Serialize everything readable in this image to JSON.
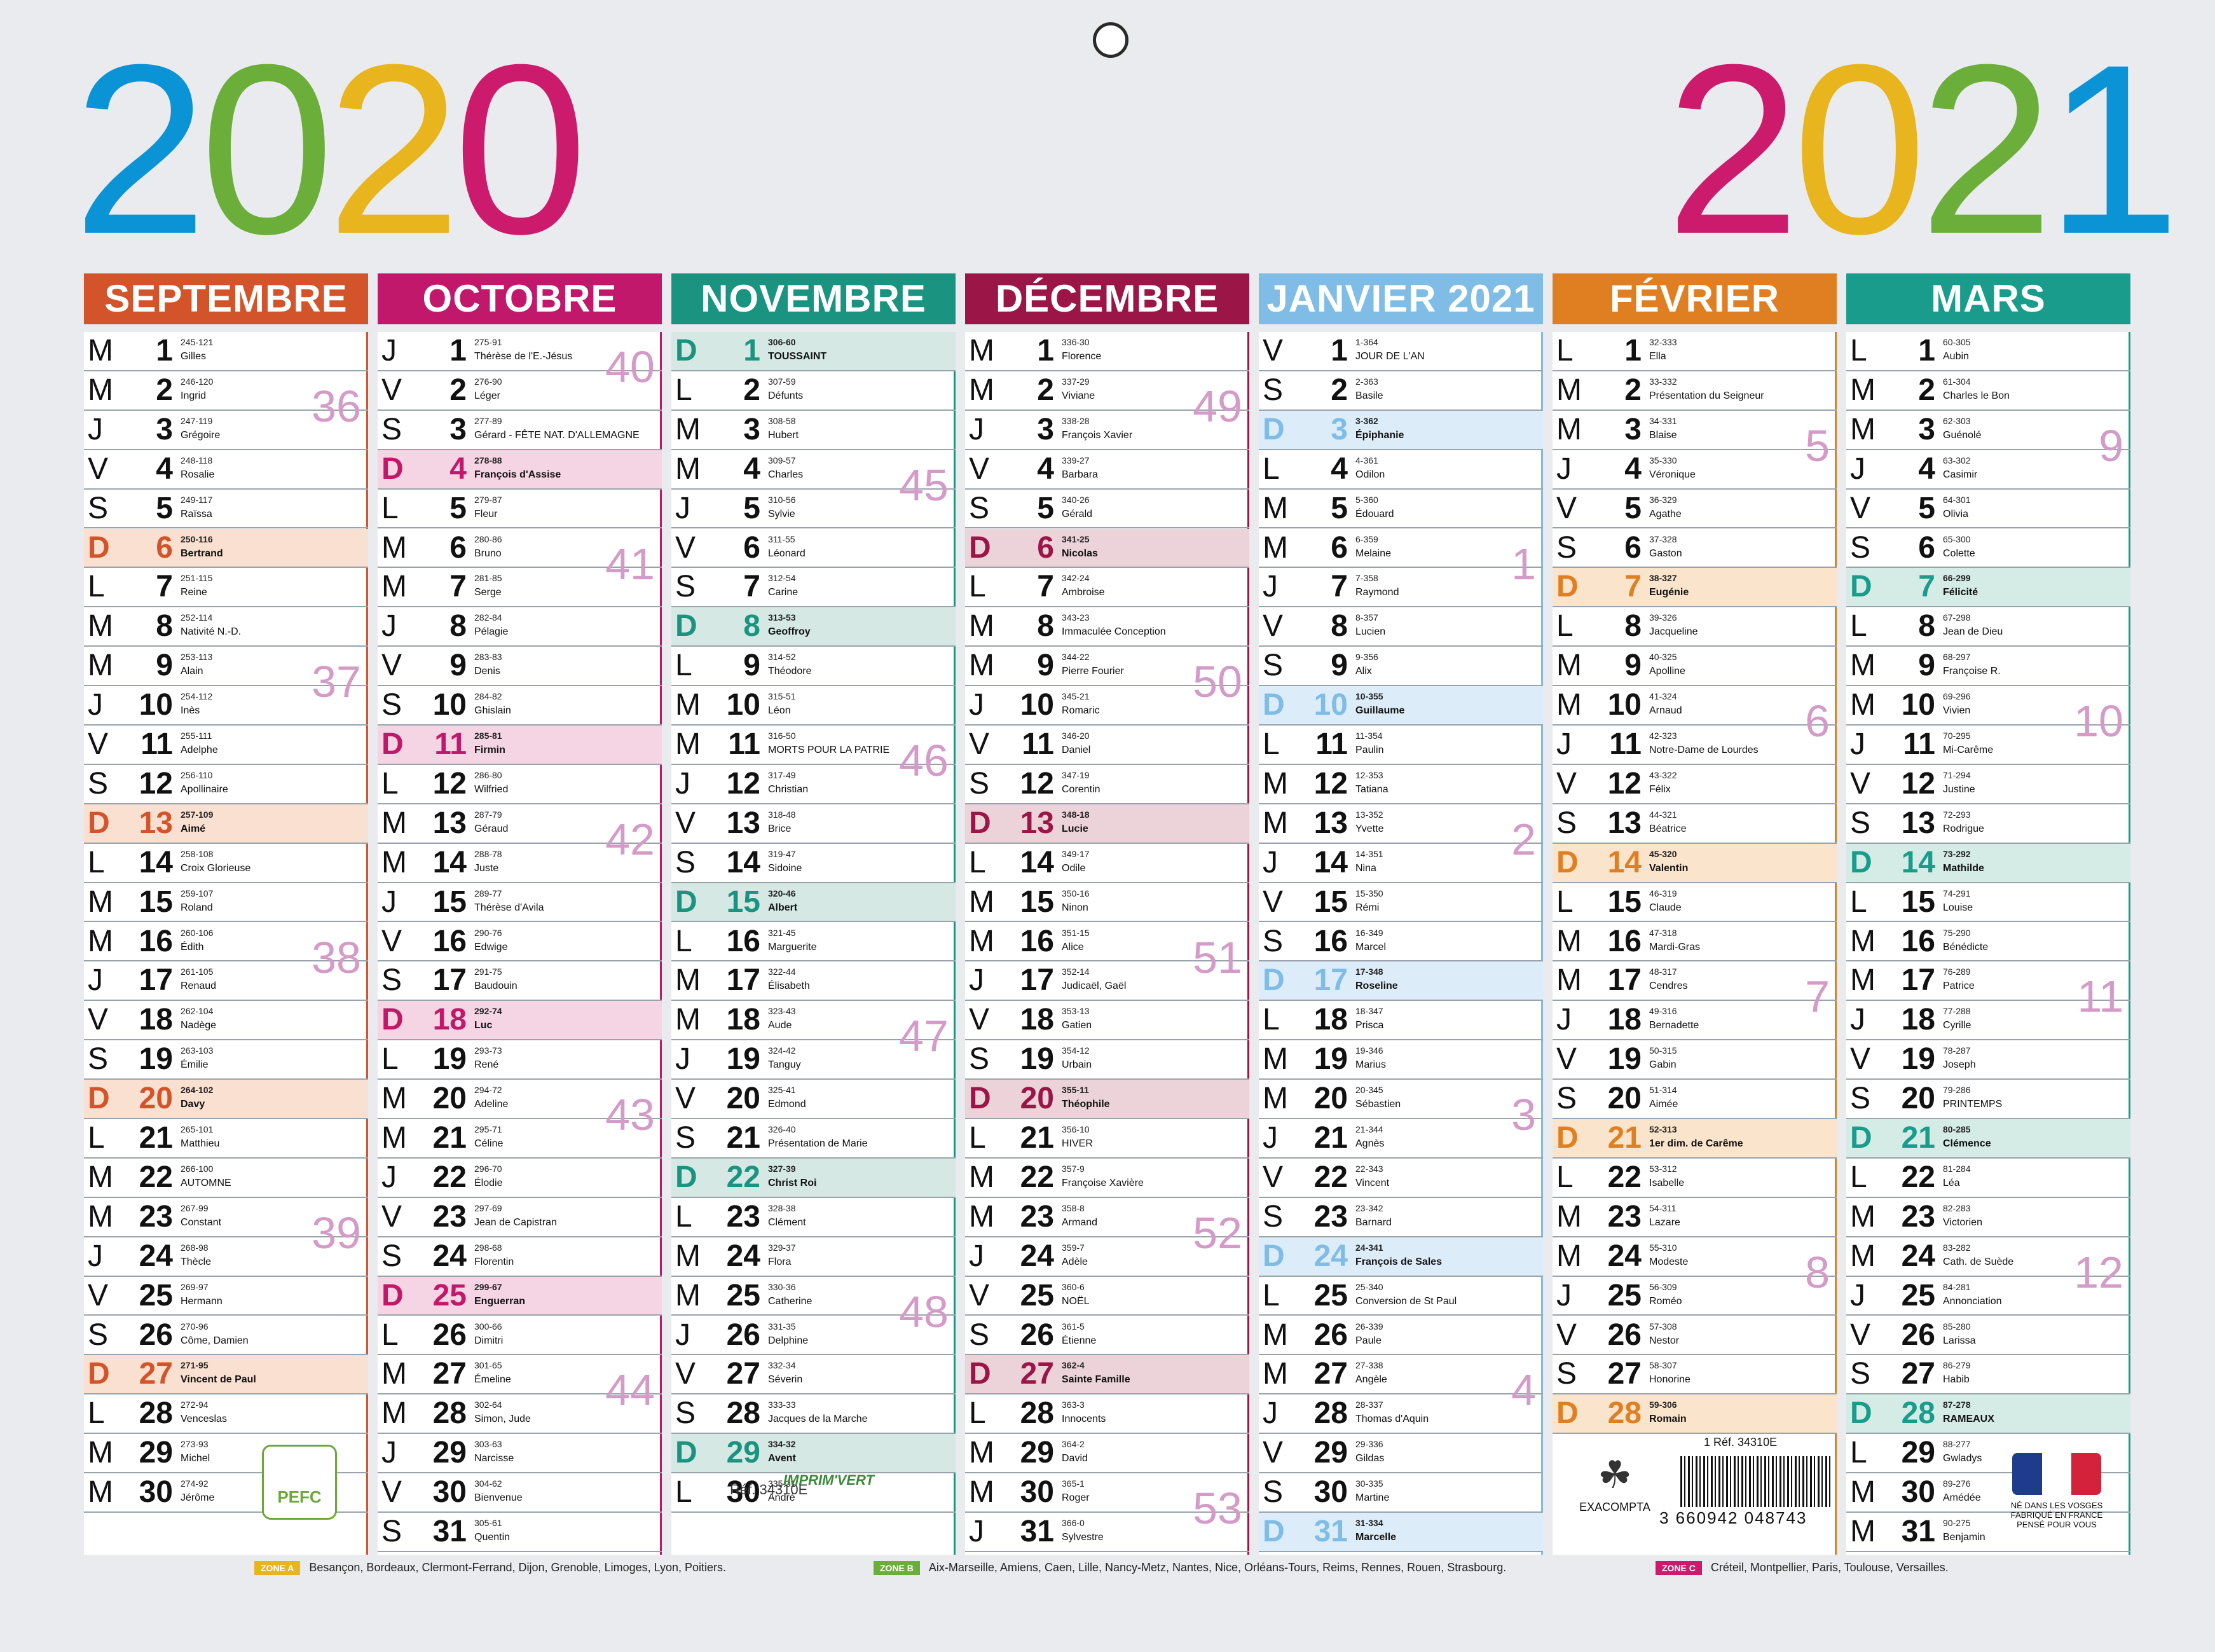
{
  "years": {
    "left": "2020",
    "right": "2021"
  },
  "colors": {
    "blue": "#0a93d5",
    "green": "#6cae3a",
    "yellow": "#e8b51e",
    "pink": "#cc1a6c"
  },
  "months": [
    {
      "name": "SEPTEMBRE 2020",
      "color": "#d3542a",
      "tint": "#fae0d0",
      "start": 1,
      "days": 30,
      "dow": 2,
      "doy": 245,
      "rem": 121,
      "saints": [
        "Gilles",
        "Ingrid",
        "Grégoire",
        "Rosalie",
        "Raïssa",
        "Bertrand",
        "Reine",
        "Nativité N.-D.",
        "Alain",
        "Inès",
        "Adelphe",
        "Apollinaire",
        "Aimé",
        "Croix Glorieuse",
        "Roland",
        "Édith",
        "Renaud",
        "Nadège",
        "Émilie",
        "Davy",
        "Matthieu",
        "AUTOMNE",
        "Constant",
        "Thècle",
        "Hermann",
        "Côme, Damien",
        "Vincent de Paul",
        "Venceslas",
        "Michel",
        "Jérôme"
      ],
      "weeks": [
        [
          "36",
          1
        ],
        [
          "37",
          8
        ],
        [
          "38",
          15
        ],
        [
          "39",
          22
        ]
      ]
    },
    {
      "name": "OCTOBRE",
      "color": "#c2186b",
      "tint": "#f5d4e4",
      "start": 1,
      "days": 31,
      "dow": 4,
      "doy": 275,
      "rem": 91,
      "saints": [
        "Thérèse de l'E.-Jésus",
        "Léger",
        "Gérard - FÊTE NAT. D'ALLEMAGNE",
        "François d'Assise",
        "Fleur",
        "Bruno",
        "Serge",
        "Pélagie",
        "Denis",
        "Ghislain",
        "Firmin",
        "Wilfried",
        "Géraud",
        "Juste",
        "Thérèse d'Avila",
        "Edwige",
        "Baudouin",
        "Luc",
        "René",
        "Adeline",
        "Céline",
        "Élodie",
        "Jean de Capistran",
        "Florentin",
        "Enguerran",
        "Dimitri",
        "Émeline",
        "Simon, Jude",
        "Narcisse",
        "Bienvenue",
        "Quentin"
      ],
      "weeks": [
        [
          "40",
          0
        ],
        [
          "41",
          5
        ],
        [
          "42",
          12
        ],
        [
          "43",
          19
        ],
        [
          "44",
          26
        ]
      ]
    },
    {
      "name": "NOVEMBRE",
      "color": "#1a9480",
      "tint": "#d5e8e4",
      "start": 1,
      "days": 30,
      "dow": 0,
      "doy": 306,
      "rem": 60,
      "saints": [
        "TOUSSAINT",
        "Défunts",
        "Hubert",
        "Charles",
        "Sylvie",
        "Léonard",
        "Carine",
        "Geoffroy",
        "Théodore",
        "Léon",
        "MORTS POUR LA PATRIE",
        "Christian",
        "Brice",
        "Sidoine",
        "Albert",
        "Marguerite",
        "Élisabeth",
        "Aude",
        "Tanguy",
        "Edmond",
        "Présentation de Marie",
        "Christ Roi",
        "Clément",
        "Flora",
        "Catherine",
        "Delphine",
        "Séverin",
        "Jacques de la Marche",
        "Avent",
        "André"
      ],
      "weeks": [
        [
          "45",
          3
        ],
        [
          "46",
          10
        ],
        [
          "47",
          17
        ],
        [
          "48",
          24
        ]
      ]
    },
    {
      "name": "DÉCEMBRE",
      "color": "#9c1547",
      "tint": "#ecd3da",
      "start": 1,
      "days": 31,
      "dow": 2,
      "doy": 336,
      "rem": 30,
      "saints": [
        "Florence",
        "Viviane",
        "François Xavier",
        "Barbara",
        "Gérald",
        "Nicolas",
        "Ambroise",
        "Immaculée Conception",
        "Pierre Fourier",
        "Romaric",
        "Daniel",
        "Corentin",
        "Lucie",
        "Odile",
        "Ninon",
        "Alice",
        "Judicaël, Gaël",
        "Gatien",
        "Urbain",
        "Théophile",
        "HIVER",
        "Françoise Xavière",
        "Armand",
        "Adèle",
        "NOËL",
        "Étienne",
        "Sainte Famille",
        "Innocents",
        "David",
        "Roger",
        "Sylvestre"
      ],
      "weeks": [
        [
          "49",
          1
        ],
        [
          "50",
          8
        ],
        [
          "51",
          15
        ],
        [
          "52",
          22
        ],
        [
          "53",
          29
        ]
      ]
    },
    {
      "name": "JANVIER 2021",
      "color": "#7fbde6",
      "tint": "#dcecf8",
      "start": 1,
      "days": 31,
      "dow": 5,
      "doy": 1,
      "rem": 364,
      "saints": [
        "JOUR DE L'AN",
        "Basile",
        "Épiphanie",
        "Odilon",
        "Édouard",
        "Melaine",
        "Raymond",
        "Lucien",
        "Alix",
        "Guillaume",
        "Paulin",
        "Tatiana",
        "Yvette",
        "Nina",
        "Rémi",
        "Marcel",
        "Roseline",
        "Prisca",
        "Marius",
        "Sébastien",
        "Agnès",
        "Vincent",
        "Barnard",
        "François de Sales",
        "Conversion de St Paul",
        "Paule",
        "Angèle",
        "Thomas d'Aquin",
        "Gildas",
        "Martine",
        "Marcelle"
      ],
      "weeks": [
        [
          "1",
          5
        ],
        [
          "2",
          12
        ],
        [
          "3",
          19
        ],
        [
          "4",
          26
        ]
      ]
    },
    {
      "name": "FÉVRIER",
      "color": "#e07f22",
      "tint": "#fbe4cc",
      "start": 1,
      "days": 28,
      "dow": 1,
      "doy": 32,
      "rem": 333,
      "saints": [
        "Ella",
        "Présentation du Seigneur",
        "Blaise",
        "Véronique",
        "Agathe",
        "Gaston",
        "Eugénie",
        "Jacqueline",
        "Apolline",
        "Arnaud",
        "Notre-Dame de Lourdes",
        "Félix",
        "Béatrice",
        "Valentin",
        "Claude",
        "Mardi-Gras",
        "Cendres",
        "Bernadette",
        "Gabin",
        "Aimée",
        "1er dim. de Carême",
        "Isabelle",
        "Lazare",
        "Modeste",
        "Roméo",
        "Nestor",
        "Honorine",
        "Romain"
      ],
      "weeks": [
        [
          "5",
          2
        ],
        [
          "6",
          9
        ],
        [
          "7",
          16
        ],
        [
          "8",
          23
        ]
      ]
    },
    {
      "name": "MARS",
      "color": "#1a9c8c",
      "tint": "#d5ece6",
      "start": 1,
      "days": 31,
      "dow": 1,
      "doy": 60,
      "rem": 305,
      "saints": [
        "Aubin",
        "Charles le Bon",
        "Guénolé",
        "Casimir",
        "Olivia",
        "Colette",
        "Félicité",
        "Jean de Dieu",
        "Françoise R.",
        "Vivien",
        "Mi-Carême",
        "Justine",
        "Rodrigue",
        "Mathilde",
        "Louise",
        "Bénédicte",
        "Patrice",
        "Cyrille",
        "Joseph",
        "PRINTEMPS",
        "Clémence",
        "Léa",
        "Victorien",
        "Cath. de Suède",
        "Annonciation",
        "Larissa",
        "Habib",
        "RAMEAUX",
        "Gwladys",
        "Amédée",
        "Benjamin"
      ],
      "weeks": [
        [
          "9",
          2
        ],
        [
          "10",
          9
        ],
        [
          "11",
          16
        ],
        [
          "12",
          23
        ]
      ]
    }
  ],
  "letters": [
    "D",
    "L",
    "M",
    "M",
    "J",
    "V",
    "S"
  ],
  "footer": {
    "zone_a": "ZONE A",
    "zone_a_text": "Besançon, Bordeaux, Clermont-Ferrand, Dijon, Grenoble, Limoges, Lyon, Poitiers.",
    "zone_b": "ZONE B",
    "zone_b_text": "Aix-Marseille, Amiens, Caen, Lille, Nancy-Metz, Nantes, Nice, Orléans-Tours, Reims, Rennes, Rouen, Strasbourg.",
    "zone_c": "ZONE C",
    "zone_c_text": "Créteil, Montpellier, Paris, Toulouse, Versailles."
  },
  "pefc": "PEFC",
  "ref_label": "Réf. 34310E",
  "imprim": "IMPRIM'VERT",
  "exacompta": "EXACOMPTA",
  "barcode_ref": "1 Réf. 34310E",
  "barcode_num": "3 660942 048743",
  "flag_text": "NÉ DANS LES VOSGES FABRIQUÉ EN FRANCE PENSÉ POUR VOUS"
}
